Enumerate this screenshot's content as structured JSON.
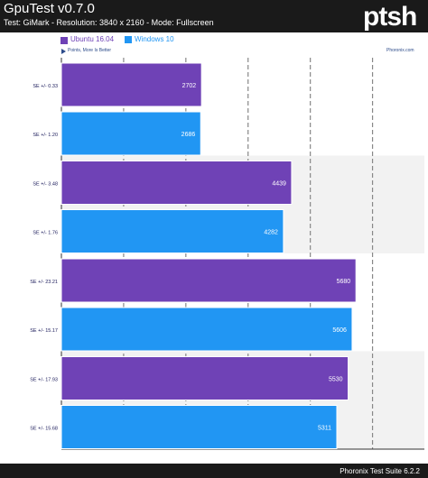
{
  "header": {
    "title": "GpuTest v0.7.0",
    "subtitle": "Test: GiMark - Resolution: 3840 x 2160 - Mode: Fullscreen",
    "logo_text": "ptsh"
  },
  "legend": {
    "entries": [
      {
        "label": "Ubuntu 16.04",
        "color": "#6f42b6"
      },
      {
        "label": "Windows 10",
        "color": "#2196f3"
      }
    ],
    "note": "Points, More Is Better",
    "site": "Phoronix.com"
  },
  "footer": {
    "suite": "Phoronix Test Suite 6.2.2"
  },
  "chart_data": {
    "type": "bar",
    "orientation": "horizontal",
    "xlim": [
      0,
      7000
    ],
    "x_ticks": [
      1200,
      2400,
      3600,
      4800,
      6000
    ],
    "grid": true,
    "legend_position": "top-left",
    "series": [
      {
        "name": "Ubuntu 16.04",
        "color": "#6f42b6"
      },
      {
        "name": "Windows 10",
        "color": "#2196f3"
      }
    ],
    "bars": [
      {
        "series": "Ubuntu 16.04",
        "label": "SE +/- 0.33",
        "value": 2702
      },
      {
        "series": "Windows 10",
        "label": "SE +/- 1.20",
        "value": 2686
      },
      {
        "series": "Ubuntu 16.04",
        "label": "SE +/- 3.48",
        "value": 4439
      },
      {
        "series": "Windows 10",
        "label": "SE +/- 1.76",
        "value": 4282
      },
      {
        "series": "Ubuntu 16.04",
        "label": "SE +/- 23.21",
        "value": 5680
      },
      {
        "series": "Windows 10",
        "label": "SE +/- 15.17",
        "value": 5606
      },
      {
        "series": "Ubuntu 16.04",
        "label": "SE +/- 17.93",
        "value": 5530
      },
      {
        "series": "Windows 10",
        "label": "SE +/- 15.68",
        "value": 5311
      }
    ]
  }
}
